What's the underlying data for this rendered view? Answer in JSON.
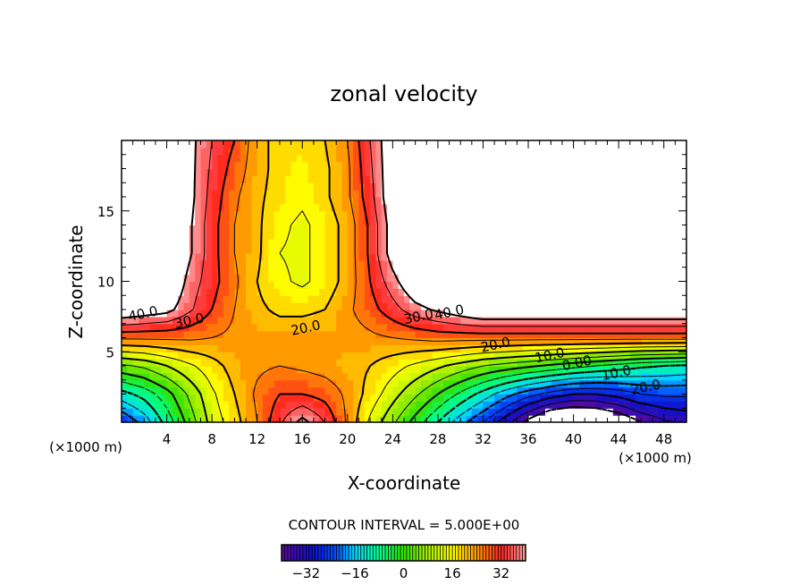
{
  "chart_data": {
    "type": "heatmap",
    "title": "zonal velocity",
    "xlabel": "X-coordinate",
    "ylabel": "Z-coordinate",
    "x_unit_label_left": "(×1000 m)",
    "x_unit_label_right": "(×1000 m)",
    "xlim": [
      0,
      50
    ],
    "ylim": [
      0,
      20
    ],
    "x_ticks": [
      4,
      8,
      12,
      16,
      20,
      24,
      28,
      32,
      36,
      40,
      44,
      48
    ],
    "y_ticks": [
      5,
      10,
      15
    ],
    "contour_interval_text": "CONTOUR INTERVAL = 5.000E+00",
    "contour_interval": 5,
    "color_range": [
      -40,
      40
    ],
    "colorbar_ticks": [
      -32,
      -16,
      0,
      16,
      32
    ],
    "colorbar_tick_labels": [
      "−32",
      "−16",
      "0",
      "16",
      "32"
    ],
    "grid_x": [
      0,
      2,
      4,
      6,
      8,
      10,
      12,
      14,
      16,
      18,
      20,
      22,
      24,
      26,
      28,
      30,
      32,
      34,
      36,
      38,
      40,
      42,
      44,
      46,
      48,
      50
    ],
    "grid_z": [
      0,
      2,
      4,
      6,
      8,
      10,
      12,
      14,
      16,
      18,
      20
    ],
    "values": [
      [
        -25,
        -18,
        -8,
        2,
        12,
        18,
        25,
        34,
        42,
        35,
        24,
        14,
        6,
        -2,
        -10,
        -18,
        -25,
        -33,
        -42,
        -50,
        -52,
        -50,
        -46,
        -40,
        -36,
        -34
      ],
      [
        -12,
        -8,
        -2,
        6,
        14,
        20,
        26,
        30,
        30,
        28,
        24,
        18,
        12,
        6,
        0,
        -6,
        -12,
        -18,
        -23,
        -27,
        -30,
        -30,
        -28,
        -25,
        -24,
        -24
      ],
      [
        4,
        6,
        10,
        14,
        18,
        22,
        24,
        25,
        24,
        23,
        22,
        20,
        17,
        14,
        11,
        8,
        5,
        3,
        1,
        -1,
        -3,
        -5,
        -7,
        -9,
        -10,
        -11
      ],
      [
        26,
        26,
        26,
        26,
        25,
        24,
        23,
        23,
        23,
        23,
        23,
        24,
        25,
        26,
        27,
        27,
        27,
        27,
        27,
        27,
        27,
        27,
        27,
        27,
        27,
        27
      ],
      [
        46,
        44,
        42,
        36,
        30,
        25,
        21,
        19,
        19,
        20,
        24,
        28,
        33,
        38,
        41,
        44,
        47,
        47,
        47,
        47,
        47,
        47,
        47,
        47,
        47,
        47
      ],
      [
        50,
        50,
        48,
        38,
        32,
        26,
        20,
        16,
        14,
        17,
        22,
        30,
        38,
        46,
        50,
        50,
        50,
        50,
        50,
        50,
        50,
        50,
        50,
        50,
        50,
        50
      ],
      [
        50,
        50,
        50,
        41,
        32,
        25,
        21,
        15,
        14,
        17,
        22,
        31,
        43,
        50,
        50,
        50,
        50,
        50,
        50,
        50,
        50,
        50,
        50,
        50,
        50,
        50
      ],
      [
        50,
        50,
        50,
        41,
        32,
        25,
        21,
        16,
        14,
        17,
        22,
        31,
        43,
        50,
        50,
        50,
        50,
        50,
        50,
        50,
        50,
        50,
        50,
        50,
        50,
        50
      ],
      [
        50,
        50,
        50,
        42,
        33,
        26,
        21,
        18,
        16,
        19,
        24,
        33,
        45,
        50,
        50,
        50,
        50,
        50,
        50,
        50,
        50,
        50,
        50,
        50,
        50,
        50
      ],
      [
        50,
        50,
        50,
        42,
        34,
        28,
        22,
        18,
        17,
        19,
        24,
        34,
        45,
        50,
        50,
        50,
        50,
        50,
        50,
        50,
        50,
        50,
        50,
        50,
        50,
        50
      ],
      [
        50,
        50,
        50,
        42,
        35,
        30,
        22,
        18,
        18,
        20,
        25,
        35,
        45,
        50,
        50,
        50,
        50,
        50,
        50,
        50,
        50,
        50,
        50,
        50,
        50,
        50
      ]
    ],
    "contour_labels": [
      {
        "text": "40.0",
        "x": 1.9,
        "z": 7.7
      },
      {
        "text": "30.0",
        "x": 6.0,
        "z": 7.2
      },
      {
        "text": "20.0",
        "x": 16.3,
        "z": 6.7
      },
      {
        "text": "30.0",
        "x": 26.3,
        "z": 7.5
      },
      {
        "text": "40.0",
        "x": 29.0,
        "z": 7.8
      },
      {
        "text": "20.0",
        "x": 33.1,
        "z": 5.5
      },
      {
        "text": "10.0",
        "x": 37.9,
        "z": 4.75
      },
      {
        "text": "0.00",
        "x": 40.3,
        "z": 4.2
      },
      {
        "text": "10.0",
        "x": 43.8,
        "z": 3.5
      },
      {
        "text": "20.0",
        "x": 46.4,
        "z": 2.5
      }
    ],
    "colormap_stops": [
      {
        "v": -40,
        "c": "#5a0a9a"
      },
      {
        "v": -30,
        "c": "#1010c8"
      },
      {
        "v": -22,
        "c": "#0050ff"
      },
      {
        "v": -16,
        "c": "#00d8ff"
      },
      {
        "v": -8,
        "c": "#00ff90"
      },
      {
        "v": 0,
        "c": "#30e000"
      },
      {
        "v": 8,
        "c": "#a8f000"
      },
      {
        "v": 16,
        "c": "#ffff00"
      },
      {
        "v": 24,
        "c": "#ff9800"
      },
      {
        "v": 32,
        "c": "#ff2020"
      },
      {
        "v": 40,
        "c": "#ffa0a0"
      }
    ]
  }
}
